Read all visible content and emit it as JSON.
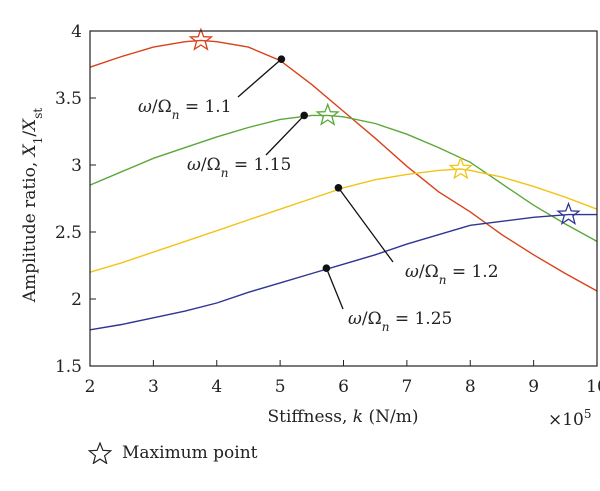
{
  "chart_data": {
    "type": "line",
    "xlabel": "Stiffness, k (N/m)",
    "ylabel": "Amplitude ratio, X1/Xst",
    "x_multiplier": "×10^5",
    "xlim": [
      2,
      10
    ],
    "ylim": [
      1.5,
      4
    ],
    "xticks": [
      2,
      3,
      4,
      5,
      6,
      7,
      8,
      9,
      10
    ],
    "yticks": [
      1.5,
      2,
      2.5,
      3,
      3.5,
      4
    ],
    "grid": false,
    "series": [
      {
        "name": "ω/Ωn = 1.1",
        "color": "#d9411a",
        "x": [
          2,
          2.5,
          3,
          3.5,
          3.75,
          4,
          4.5,
          5,
          5.5,
          6,
          6.5,
          7,
          7.5,
          8,
          8.5,
          9,
          9.5,
          10
        ],
        "y": [
          3.73,
          3.81,
          3.88,
          3.92,
          3.93,
          3.92,
          3.88,
          3.78,
          3.6,
          3.4,
          3.2,
          2.99,
          2.8,
          2.65,
          2.48,
          2.33,
          2.19,
          2.06
        ],
        "marker": {
          "x": 5.02,
          "y": 3.79
        },
        "max_point": {
          "x": 3.75,
          "y": 3.93
        }
      },
      {
        "name": "ω/Ωn = 1.15",
        "color": "#5aa83a",
        "x": [
          2,
          2.5,
          3,
          3.5,
          4,
          4.5,
          5,
          5.5,
          5.75,
          6,
          6.5,
          7,
          7.5,
          8,
          8.5,
          9,
          9.5,
          10
        ],
        "y": [
          2.85,
          2.95,
          3.05,
          3.13,
          3.21,
          3.28,
          3.34,
          3.37,
          3.37,
          3.36,
          3.31,
          3.23,
          3.13,
          3.02,
          2.86,
          2.7,
          2.56,
          2.43
        ],
        "marker": {
          "x": 5.38,
          "y": 3.37
        },
        "max_point": {
          "x": 5.75,
          "y": 3.37
        }
      },
      {
        "name": "ω/Ωn = 1.2",
        "color": "#f2c417",
        "x": [
          2,
          2.5,
          3,
          3.5,
          4,
          4.5,
          5,
          5.5,
          6,
          6.5,
          7,
          7.5,
          7.85,
          8,
          8.5,
          9,
          9.5,
          10
        ],
        "y": [
          2.2,
          2.27,
          2.35,
          2.43,
          2.51,
          2.59,
          2.67,
          2.75,
          2.83,
          2.89,
          2.93,
          2.96,
          2.97,
          2.96,
          2.91,
          2.84,
          2.76,
          2.67
        ],
        "marker": {
          "x": 5.92,
          "y": 2.83
        },
        "max_point": {
          "x": 7.85,
          "y": 2.97
        }
      },
      {
        "name": "ω/Ωn = 1.25",
        "color": "#2f3594",
        "x": [
          2,
          2.5,
          3,
          3.5,
          4,
          4.5,
          5,
          5.5,
          6,
          6.5,
          7,
          7.5,
          8,
          8.5,
          9,
          9.55,
          10
        ],
        "y": [
          1.77,
          1.81,
          1.86,
          1.91,
          1.97,
          2.05,
          2.12,
          2.19,
          2.26,
          2.33,
          2.41,
          2.48,
          2.55,
          2.58,
          2.61,
          2.63,
          2.63
        ],
        "marker": {
          "x": 5.73,
          "y": 2.23
        },
        "max_point": {
          "x": 9.55,
          "y": 2.63
        }
      }
    ],
    "legend": {
      "label": "Maximum point",
      "symbol": "star",
      "position": "bottom-left"
    }
  },
  "annotations": [
    {
      "label": "ω/Ωn = 1.1",
      "series": 0
    },
    {
      "label": "ω/Ωn = 1.15",
      "series": 1
    },
    {
      "label": "ω/Ωn = 1.2",
      "series": 2
    },
    {
      "label": "ω/Ωn = 1.25",
      "series": 3
    }
  ]
}
